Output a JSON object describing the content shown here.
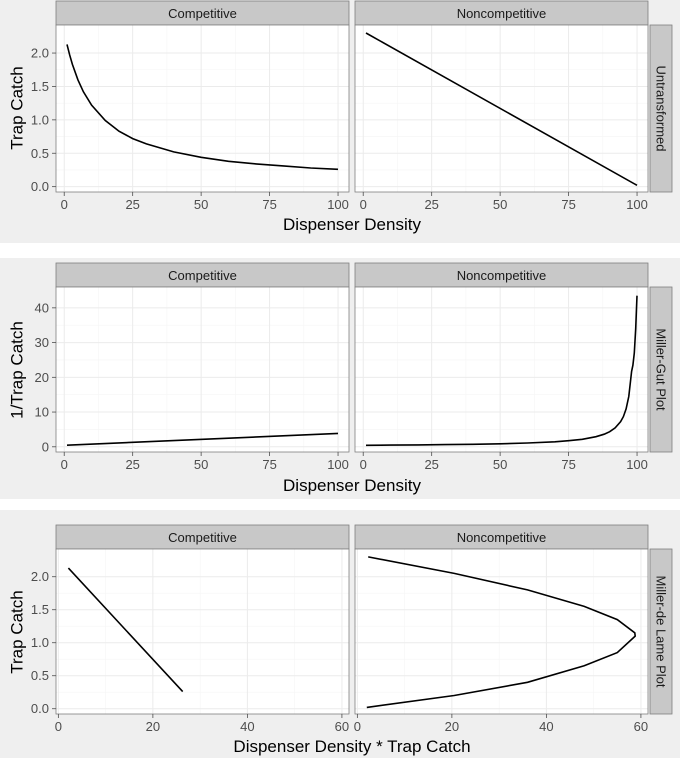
{
  "colors": {
    "figure_background": "#efefef",
    "panel_background": "#ffffff",
    "panel_border": "#7f7f7f",
    "strip_background": "#c8c8c8",
    "line": "#000000"
  },
  "chart_data": [
    {
      "type": "line",
      "row_label": "Untransformed",
      "xlabel": "Dispenser Density",
      "ylabel": "Trap Catch",
      "ylim": [
        -0.08,
        2.42
      ],
      "yticks": [
        0.0,
        0.5,
        1.0,
        1.5,
        2.0
      ],
      "ytick_labels": [
        "0.0",
        "0.5",
        "1.0",
        "1.5",
        "2.0"
      ],
      "panels": [
        {
          "strip_label": "Competitive",
          "xlim": [
            -3,
            104
          ],
          "xticks": [
            0,
            25,
            50,
            75,
            100
          ],
          "xtick_labels": [
            "0",
            "25",
            "50",
            "75",
            "100"
          ],
          "series": [
            {
              "name": "Competitive",
              "x": [
                1,
                2,
                3,
                5,
                7,
                10,
                15,
                20,
                25,
                30,
                40,
                50,
                60,
                70,
                80,
                90,
                100
              ],
              "y": [
                2.13,
                1.97,
                1.83,
                1.6,
                1.42,
                1.22,
                0.99,
                0.83,
                0.72,
                0.64,
                0.52,
                0.44,
                0.38,
                0.34,
                0.31,
                0.28,
                0.26
              ]
            }
          ]
        },
        {
          "strip_label": "Noncompetitive",
          "xlim": [
            -3,
            104
          ],
          "xticks": [
            0,
            25,
            50,
            75,
            100
          ],
          "xtick_labels": [
            "0",
            "25",
            "50",
            "75",
            "100"
          ],
          "series": [
            {
              "name": "Noncompetitive",
              "x": [
                1,
                100
              ],
              "y": [
                2.3,
                0.02
              ]
            }
          ]
        }
      ]
    },
    {
      "type": "line",
      "row_label": "Miller-Gut Plot",
      "xlabel": "Dispenser Density",
      "ylabel": "1/Trap Catch",
      "ylim": [
        -1.5,
        46
      ],
      "yticks": [
        0,
        10,
        20,
        30,
        40
      ],
      "ytick_labels": [
        "0",
        "10",
        "20",
        "30",
        "40"
      ],
      "panels": [
        {
          "strip_label": "Competitive",
          "xlim": [
            -3,
            104
          ],
          "xticks": [
            0,
            25,
            50,
            75,
            100
          ],
          "xtick_labels": [
            "0",
            "25",
            "50",
            "75",
            "100"
          ],
          "series": [
            {
              "name": "Competitive",
              "x": [
                1,
                100
              ],
              "y": [
                0.47,
                3.85
              ]
            }
          ]
        },
        {
          "strip_label": "Noncompetitive",
          "xlim": [
            -3,
            104
          ],
          "xticks": [
            0,
            25,
            50,
            75,
            100
          ],
          "xtick_labels": [
            "0",
            "25",
            "50",
            "75",
            "100"
          ],
          "series": [
            {
              "name": "Noncompetitive",
              "x": [
                1,
                10,
                20,
                30,
                40,
                50,
                60,
                70,
                75,
                80,
                85,
                88,
                90,
                92,
                94,
                95,
                96,
                97,
                98,
                98.5,
                99,
                99.5,
                100
              ],
              "y": [
                0.44,
                0.48,
                0.54,
                0.62,
                0.72,
                0.87,
                1.09,
                1.45,
                1.74,
                2.17,
                2.9,
                3.62,
                4.35,
                5.43,
                7.25,
                8.7,
                10.9,
                14.5,
                21.7,
                23.5,
                27.0,
                34.0,
                43.5
              ]
            }
          ]
        }
      ]
    },
    {
      "type": "line",
      "row_label": "Miller-de Lame Plot",
      "xlabel": "Dispenser Density * Trap Catch",
      "ylabel": "Trap Catch",
      "ylim": [
        -0.08,
        2.42
      ],
      "yticks": [
        0.0,
        0.5,
        1.0,
        1.5,
        2.0
      ],
      "ytick_labels": [
        "0.0",
        "0.5",
        "1.0",
        "1.5",
        "2.0"
      ],
      "panels": [
        {
          "strip_label": "Competitive",
          "xlim": [
            -0.5,
            61.5
          ],
          "xticks": [
            0,
            20,
            40,
            60
          ],
          "xtick_labels": [
            "0",
            "20",
            "40",
            "60"
          ],
          "series": [
            {
              "name": "Competitive",
              "x": [
                2.13,
                26.3
              ],
              "y": [
                2.13,
                0.26
              ]
            }
          ]
        },
        {
          "strip_label": "Noncompetitive",
          "xlim": [
            -0.5,
            61.5
          ],
          "xticks": [
            0,
            20,
            40,
            60
          ],
          "xtick_labels": [
            "0",
            "20",
            "40",
            "60"
          ],
          "series": [
            {
              "name": "Noncompetitive",
              "x": [
                2.3,
                20.5,
                36.0,
                48.0,
                55.0,
                58.7,
                58.8,
                55.0,
                48.0,
                36.0,
                20.5,
                2.0
              ],
              "y": [
                2.3,
                2.05,
                1.8,
                1.55,
                1.35,
                1.15,
                1.1,
                0.85,
                0.65,
                0.4,
                0.2,
                0.02
              ]
            }
          ]
        }
      ]
    }
  ]
}
